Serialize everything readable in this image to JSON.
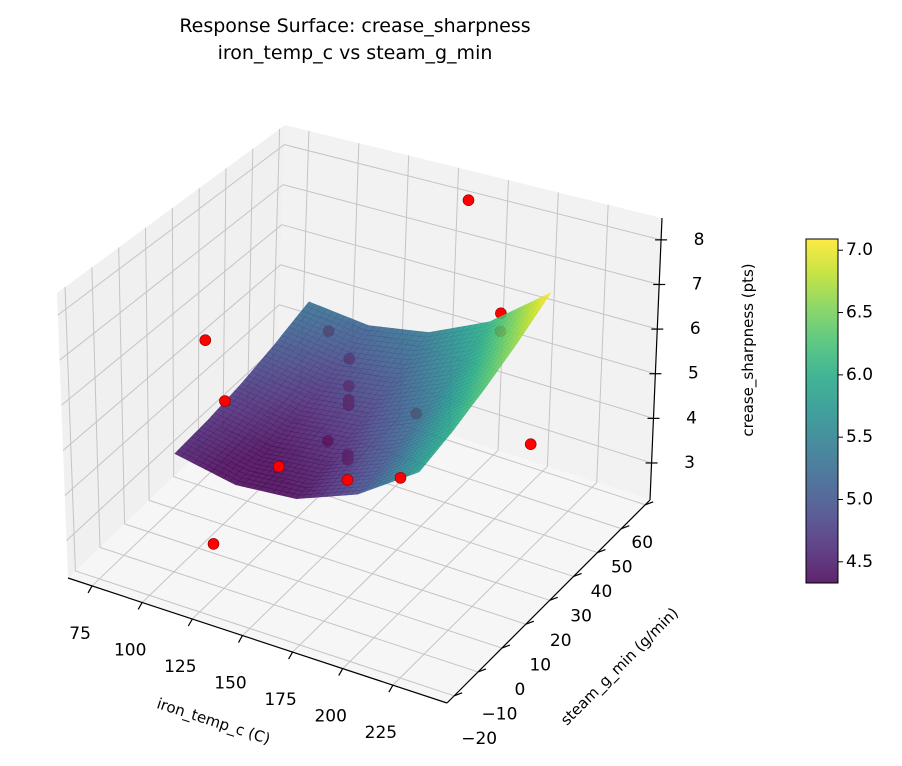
{
  "chart_data": {
    "type": "surface3d",
    "title_line1": "Response Surface: crease_sharpness",
    "title_line2": "iron_temp_c vs steam_g_min",
    "xlabel": "iron_temp_c (C)",
    "ylabel": "steam_g_min (g/min)",
    "zlabel": "crease_sharpness (pts)",
    "xlim": [
      63,
      252
    ],
    "ylim": [
      -23,
      62
    ],
    "zlim": [
      2.17,
      8.49
    ],
    "xticks": [
      "75",
      "100",
      "125",
      "150",
      "175",
      "200",
      "225"
    ],
    "xtick_values": [
      75,
      100,
      125,
      150,
      175,
      200,
      225
    ],
    "yticks": [
      "−20",
      "−10",
      "0",
      "10",
      "20",
      "30",
      "40",
      "50",
      "60"
    ],
    "ytick_values": [
      -20,
      -10,
      0,
      10,
      20,
      30,
      40,
      50,
      60
    ],
    "zticks": [
      "3",
      "4",
      "5",
      "6",
      "7",
      "8"
    ],
    "ztick_values": [
      3,
      4,
      5,
      6,
      7,
      8
    ],
    "grid": true,
    "colormap": "viridis",
    "surface": {
      "x": [
        95,
        125,
        155,
        185,
        215
      ],
      "y": [
        -5,
        8.25,
        21.5,
        34.75,
        48
      ],
      "z": [
        [
          4.5,
          4.23,
          4.35,
          4.88,
          5.8
        ],
        [
          4.59,
          4.34,
          4.5,
          5.06,
          6.01
        ],
        [
          4.75,
          4.54,
          4.73,
          5.31,
          6.3
        ],
        [
          4.99,
          4.81,
          5.03,
          5.64,
          6.66
        ],
        [
          5.3,
          5.15,
          5.4,
          6.05,
          7.1
        ]
      ]
    },
    "points_color": "#ff0000",
    "points": [
      {
        "x": 158,
        "y": 60,
        "z": 7.92,
        "occluded": false
      },
      {
        "x": 79,
        "y": 20,
        "z": 5.61,
        "occluded": false
      },
      {
        "x": 70,
        "y": 35,
        "z": 3.25,
        "occluded": false
      },
      {
        "x": 150,
        "y": -8,
        "z": 5.15,
        "occluded": false
      },
      {
        "x": 150,
        "y": 20,
        "z": 3.4,
        "occluded": false
      },
      {
        "x": 200,
        "y": 0,
        "z": 5.2,
        "occluded": false
      },
      {
        "x": 240,
        "y": 20,
        "z": 5.47,
        "occluded": false
      },
      {
        "x": 120,
        "y": -10,
        "z": 3.09,
        "occluded": false
      },
      {
        "x": 115,
        "y": 40,
        "z": 5.3,
        "occluded": true
      },
      {
        "x": 150,
        "y": 20,
        "z": 6.17,
        "occluded": true
      },
      {
        "x": 150,
        "y": 20,
        "z": 5.55,
        "occluded": true
      },
      {
        "x": 150,
        "y": 20,
        "z": 5.23,
        "occluded": true
      },
      {
        "x": 150,
        "y": 20,
        "z": 5.11,
        "occluded": true
      },
      {
        "x": 150,
        "y": 48,
        "z": 3.43,
        "occluded": true
      },
      {
        "x": 140,
        "y": 20,
        "z": 4.15,
        "occluded": true
      },
      {
        "x": 150,
        "y": 20,
        "z": 3.97,
        "occluded": true
      },
      {
        "x": 150,
        "y": 20,
        "z": 3.86,
        "occluded": true
      },
      {
        "x": 200,
        "y": 40,
        "z": 6.85,
        "occluded": true
      },
      {
        "x": 200,
        "y": 40,
        "z": 6.44,
        "occluded": true
      }
    ],
    "colorbar": {
      "range": [
        4.33,
        7.09
      ],
      "ticks": [
        "4.5",
        "5.0",
        "5.5",
        "6.0",
        "6.5",
        "7.0"
      ],
      "tick_values": [
        4.5,
        5.0,
        5.5,
        6.0,
        6.5,
        7.0
      ]
    }
  }
}
